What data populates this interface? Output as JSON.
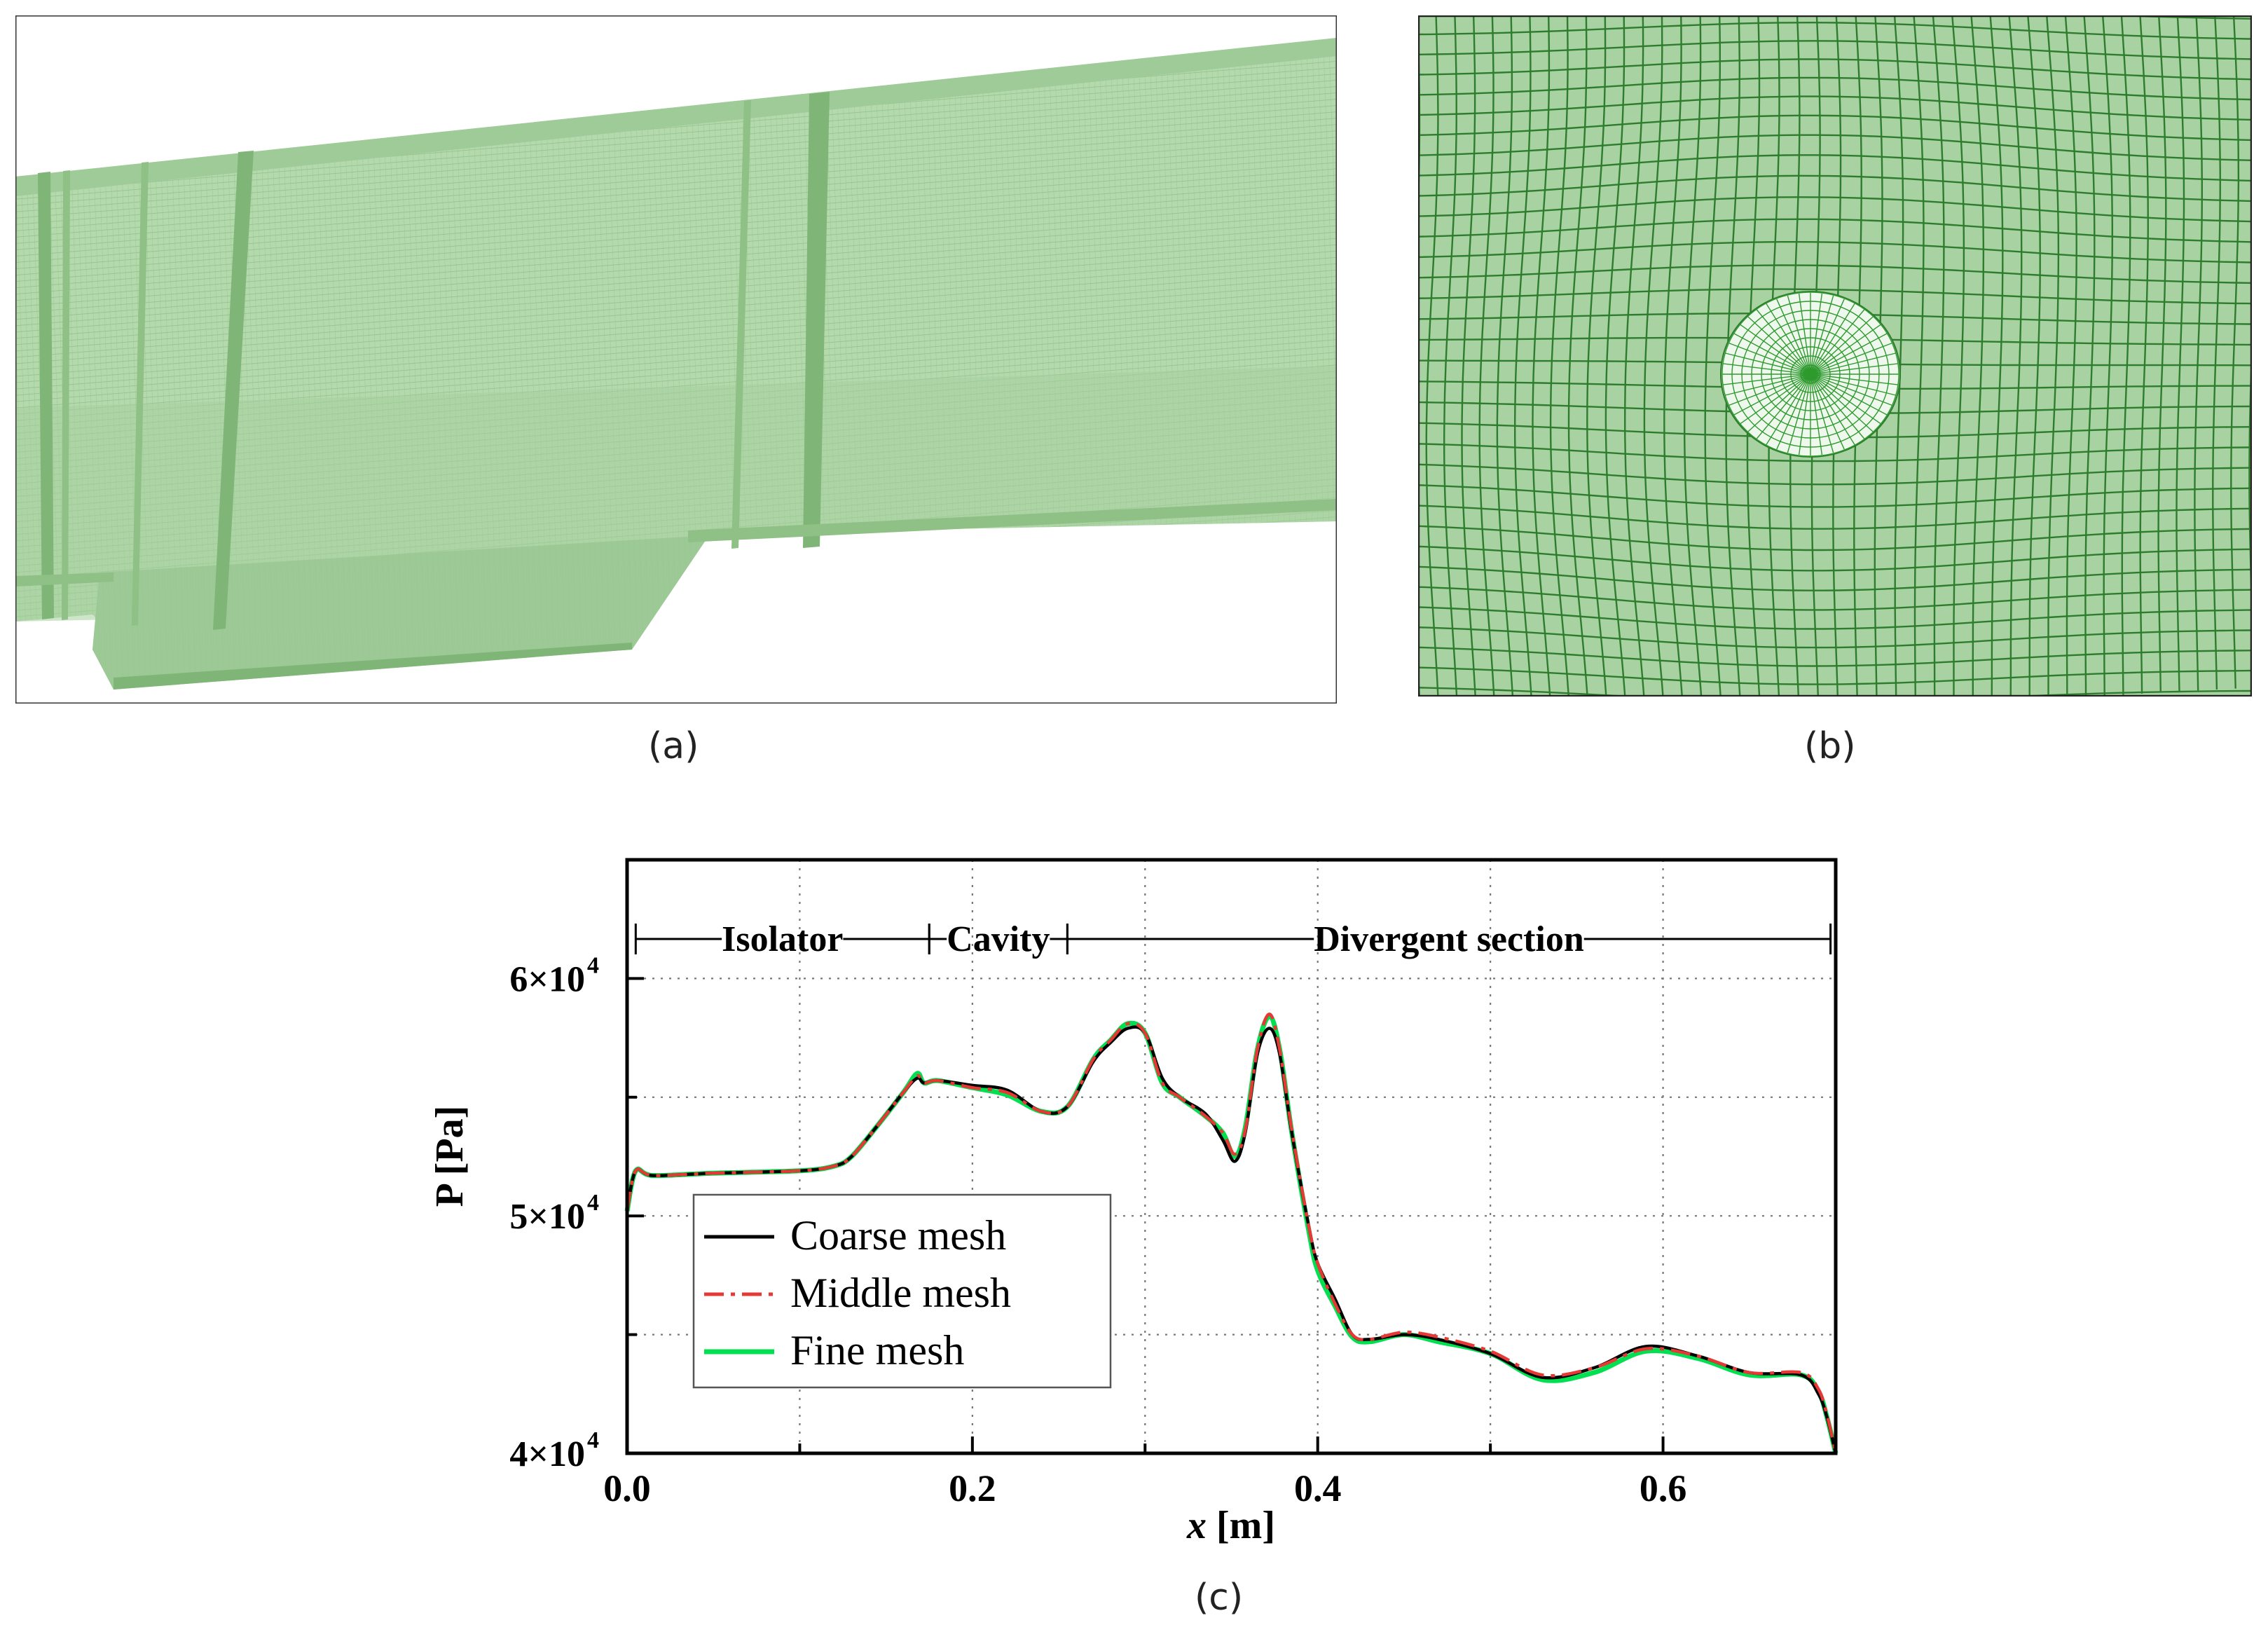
{
  "panels": {
    "a": {
      "label": "(a)"
    },
    "b": {
      "label": "(b)"
    },
    "c": {
      "label": "(c)"
    }
  },
  "colors": {
    "mesh_fill": "#a9d2a2",
    "mesh_line": "#2e8b2e",
    "coarse": "#000000",
    "middle": "#e53935",
    "fine": "#00e050"
  },
  "chart_data": {
    "type": "line",
    "xlabel_var": "x",
    "xlabel_unit": " [m]",
    "ylabel": "P [Pa]",
    "xlim": [
      0,
      0.7
    ],
    "ylim": [
      40000,
      65000
    ],
    "x_ticks": [
      {
        "value": 0.0,
        "label": "0.0"
      },
      {
        "value": 0.2,
        "label": "0.2"
      },
      {
        "value": 0.4,
        "label": "0.4"
      },
      {
        "value": 0.6,
        "label": "0.6"
      }
    ],
    "y_ticks": [
      {
        "value": 40000,
        "base": "4×10",
        "exp": "4"
      },
      {
        "value": 50000,
        "base": "5×10",
        "exp": "4"
      },
      {
        "value": 60000,
        "base": "6×10",
        "exp": "4"
      }
    ],
    "sections": [
      {
        "name": "Isolator",
        "start": 0.005,
        "end": 0.175
      },
      {
        "name": "Cavity",
        "start": 0.175,
        "end": 0.255
      },
      {
        "name": "Divergent section",
        "start": 0.255,
        "end": 0.697
      }
    ],
    "legend": {
      "position": "lower-left",
      "entries": [
        "Coarse mesh",
        "Middle mesh",
        "Fine mesh"
      ]
    },
    "series": [
      {
        "name": "Coarse mesh",
        "style": "solid",
        "x": [
          0,
          0.005,
          0.015,
          0.05,
          0.1,
          0.12,
          0.13,
          0.145,
          0.16,
          0.168,
          0.172,
          0.18,
          0.2,
          0.22,
          0.24,
          0.255,
          0.27,
          0.28,
          0.29,
          0.3,
          0.31,
          0.32,
          0.335,
          0.345,
          0.352,
          0.358,
          0.365,
          0.372,
          0.378,
          0.385,
          0.395,
          0.4,
          0.41,
          0.42,
          0.43,
          0.45,
          0.47,
          0.5,
          0.53,
          0.56,
          0.59,
          0.62,
          0.65,
          0.68,
          0.69,
          0.695,
          0.7
        ],
        "y": [
          50200,
          51900,
          51700,
          51800,
          51900,
          52100,
          52500,
          53800,
          55200,
          55800,
          55600,
          55700,
          55500,
          55300,
          54400,
          54600,
          56500,
          57300,
          57900,
          57700,
          55800,
          55000,
          54300,
          53200,
          52300,
          53500,
          56800,
          57900,
          56800,
          53500,
          49500,
          48000,
          46500,
          45000,
          44800,
          45000,
          44800,
          44200,
          43200,
          43600,
          44500,
          44100,
          43400,
          43300,
          42500,
          41500,
          40000
        ]
      },
      {
        "name": "Middle mesh",
        "style": "dashdot",
        "x": [
          0,
          0.005,
          0.015,
          0.05,
          0.1,
          0.12,
          0.13,
          0.145,
          0.16,
          0.168,
          0.172,
          0.18,
          0.2,
          0.22,
          0.24,
          0.255,
          0.27,
          0.28,
          0.29,
          0.3,
          0.31,
          0.32,
          0.335,
          0.345,
          0.352,
          0.358,
          0.365,
          0.372,
          0.378,
          0.385,
          0.395,
          0.4,
          0.41,
          0.42,
          0.43,
          0.45,
          0.47,
          0.5,
          0.53,
          0.56,
          0.59,
          0.62,
          0.65,
          0.68,
          0.69,
          0.695,
          0.7
        ],
        "y": [
          50200,
          51900,
          51700,
          51800,
          51900,
          52100,
          52500,
          53800,
          55200,
          55900,
          55600,
          55700,
          55400,
          55200,
          54400,
          54600,
          56600,
          57400,
          58100,
          57700,
          55600,
          55000,
          54200,
          53500,
          52600,
          53600,
          57000,
          58500,
          57000,
          53600,
          49500,
          48000,
          46300,
          45000,
          44800,
          45100,
          44900,
          44300,
          43300,
          43600,
          44400,
          44100,
          43400,
          43400,
          42700,
          41600,
          40000
        ]
      },
      {
        "name": "Fine mesh",
        "style": "solid",
        "x": [
          0,
          0.005,
          0.015,
          0.05,
          0.1,
          0.12,
          0.13,
          0.145,
          0.16,
          0.168,
          0.172,
          0.18,
          0.2,
          0.22,
          0.24,
          0.255,
          0.27,
          0.28,
          0.29,
          0.3,
          0.31,
          0.32,
          0.335,
          0.345,
          0.352,
          0.358,
          0.365,
          0.372,
          0.378,
          0.385,
          0.395,
          0.4,
          0.41,
          0.42,
          0.43,
          0.45,
          0.47,
          0.5,
          0.53,
          0.56,
          0.59,
          0.62,
          0.65,
          0.68,
          0.69,
          0.695,
          0.7
        ],
        "y": [
          50200,
          51900,
          51700,
          51800,
          51900,
          52100,
          52500,
          53800,
          55200,
          56000,
          55600,
          55700,
          55400,
          55100,
          54400,
          54600,
          56600,
          57400,
          58100,
          57700,
          55600,
          55000,
          54200,
          53500,
          52500,
          53700,
          57000,
          58400,
          57000,
          53500,
          49300,
          47700,
          46200,
          44900,
          44700,
          45000,
          44700,
          44200,
          43100,
          43400,
          44300,
          44000,
          43300,
          43300,
          42600,
          41500,
          40000
        ]
      }
    ]
  }
}
